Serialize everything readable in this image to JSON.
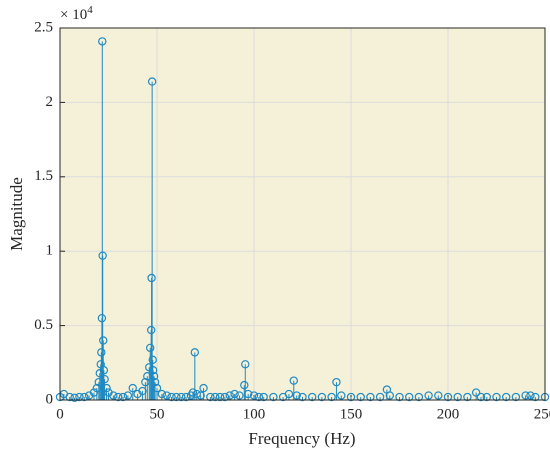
{
  "chart_data": {
    "type": "stem",
    "xlabel": "Frequency (Hz)",
    "ylabel": "Magnitude",
    "y_exponent_base": "× 10",
    "y_exponent_power": "4",
    "color": "#1f8ac4",
    "background": "#f5f0d8",
    "grid": true,
    "xlim": [
      0,
      250
    ],
    "xticks": [
      0,
      50,
      100,
      150,
      200,
      250
    ],
    "ylim": [
      0,
      2.5
    ],
    "yticks": [
      0,
      0.5,
      1,
      1.5,
      2,
      2.5
    ],
    "x": [
      0,
      2,
      5,
      7.5,
      10,
      12.5,
      15,
      17.5,
      19,
      20,
      20.5,
      21,
      21.3,
      21.6,
      21.8,
      22,
      22.3,
      22.6,
      23,
      24,
      25,
      27.5,
      30,
      32.5,
      35,
      37.5,
      40,
      42.5,
      44,
      45,
      46,
      46.5,
      47,
      47.2,
      47.5,
      47.8,
      48,
      48.5,
      49,
      50,
      52.5,
      55,
      57.5,
      60,
      62.5,
      65,
      67.5,
      68.5,
      69.5,
      70.5,
      72.5,
      74,
      77.5,
      80,
      82.5,
      85,
      87.5,
      90,
      92.5,
      95,
      95.5,
      97,
      100,
      102.5,
      105,
      110,
      115,
      118,
      120.5,
      122,
      125,
      130,
      135,
      140,
      142.5,
      145,
      150,
      155,
      160,
      165,
      168.5,
      170,
      175,
      180,
      185,
      190,
      195,
      200,
      205,
      210,
      214.5,
      217,
      220,
      225,
      230,
      235,
      240,
      242.5,
      245,
      250
    ],
    "values": [
      0.02,
      0.04,
      0.02,
      0.015,
      0.02,
      0.02,
      0.03,
      0.05,
      0.08,
      0.12,
      0.18,
      0.24,
      0.32,
      0.55,
      2.41,
      0.97,
      0.4,
      0.2,
      0.14,
      0.08,
      0.05,
      0.03,
      0.02,
      0.02,
      0.03,
      0.08,
      0.04,
      0.06,
      0.12,
      0.16,
      0.22,
      0.35,
      0.47,
      0.82,
      2.14,
      0.27,
      0.2,
      0.16,
      0.12,
      0.08,
      0.04,
      0.03,
      0.02,
      0.02,
      0.02,
      0.02,
      0.03,
      0.05,
      0.32,
      0.04,
      0.03,
      0.08,
      0.02,
      0.02,
      0.02,
      0.02,
      0.03,
      0.04,
      0.03,
      0.1,
      0.24,
      0.04,
      0.03,
      0.02,
      0.02,
      0.02,
      0.02,
      0.04,
      0.13,
      0.03,
      0.02,
      0.02,
      0.02,
      0.02,
      0.12,
      0.03,
      0.02,
      0.02,
      0.02,
      0.02,
      0.07,
      0.03,
      0.02,
      0.02,
      0.02,
      0.03,
      0.03,
      0.02,
      0.02,
      0.02,
      0.05,
      0.02,
      0.02,
      0.02,
      0.02,
      0.02,
      0.03,
      0.03,
      0.02,
      0.02
    ]
  }
}
